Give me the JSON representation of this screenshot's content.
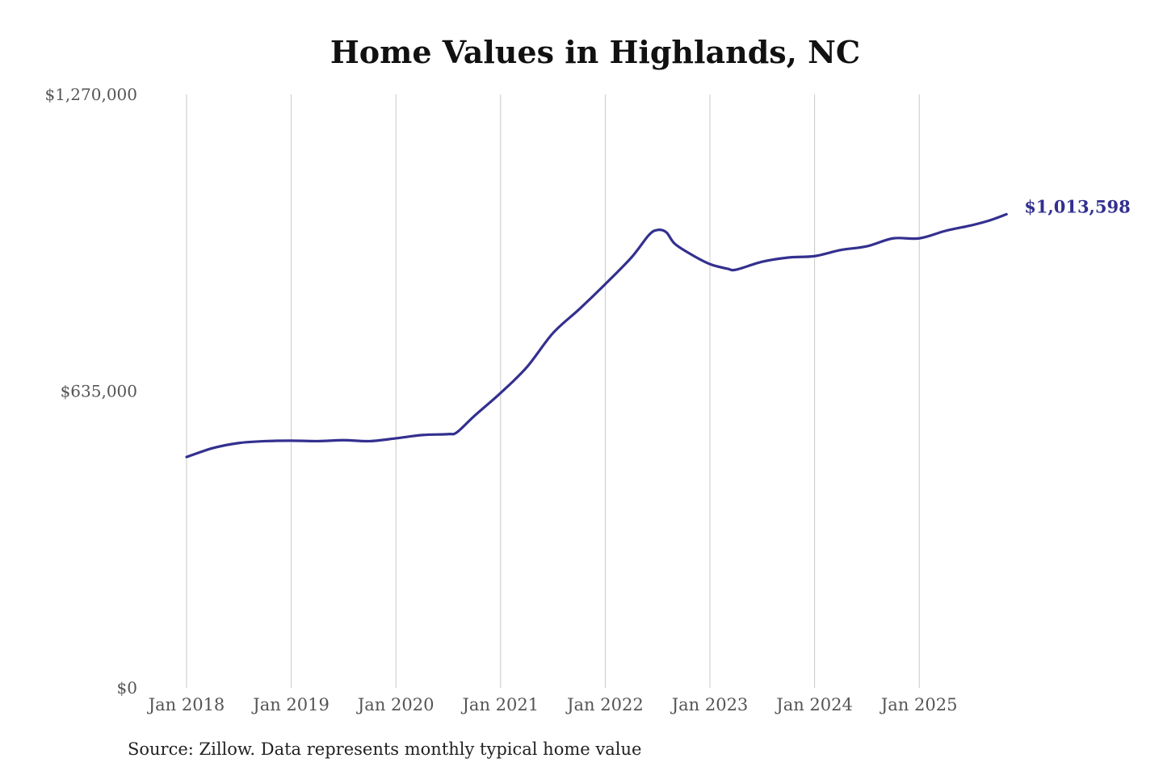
{
  "chart_data": {
    "type": "line",
    "title": "Home Values in Highlands, NC",
    "source": "Source: Zillow. Data represents monthly typical home value",
    "xlabel": "",
    "ylabel": "",
    "ylim": [
      0,
      1270000
    ],
    "y_ticks": [
      0,
      635000,
      1270000
    ],
    "y_tick_labels": [
      "$0",
      "$635,000",
      "$1,270,000"
    ],
    "x_ticks": [
      "2018-01",
      "2019-01",
      "2020-01",
      "2021-01",
      "2022-01",
      "2023-01",
      "2024-01",
      "2025-01"
    ],
    "x_tick_labels": [
      "Jan 2018",
      "Jan 2019",
      "Jan 2020",
      "Jan 2021",
      "Jan 2022",
      "Jan 2023",
      "Jan 2024",
      "Jan 2025"
    ],
    "grid": "vertical",
    "line_color": "#33308f",
    "end_label": "$1,013,598",
    "series": [
      {
        "x": [
          "2018-01",
          "2018-04",
          "2018-07",
          "2018-10",
          "2019-01",
          "2019-04",
          "2019-07",
          "2019-10",
          "2020-01",
          "2020-04",
          "2020-07",
          "2020-08",
          "2020-10",
          "2021-01",
          "2021-04",
          "2021-07",
          "2021-10",
          "2022-01",
          "2022-04",
          "2022-06",
          "2022-07",
          "2022-08",
          "2022-09",
          "2022-11",
          "2023-01",
          "2023-03",
          "2023-04",
          "2023-07",
          "2023-10",
          "2024-01",
          "2024-04",
          "2024-07",
          "2024-10",
          "2025-01",
          "2025-04",
          "2025-07",
          "2025-09",
          "2025-11"
        ],
        "values": [
          494000,
          513000,
          524000,
          528000,
          529000,
          528000,
          530000,
          528000,
          534000,
          541000,
          543000,
          547000,
          582000,
          631000,
          686000,
          759000,
          810000,
          864000,
          921000,
          969000,
          980000,
          975000,
          950000,
          926000,
          907000,
          897000,
          895000,
          912000,
          921000,
          924000,
          937000,
          945000,
          962000,
          962000,
          978000,
          990000,
          1000000,
          1013598
        ]
      }
    ]
  }
}
